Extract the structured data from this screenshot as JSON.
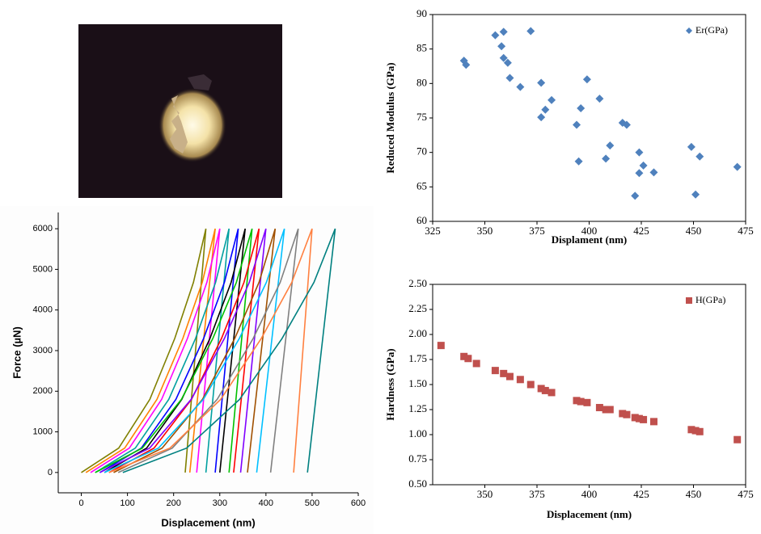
{
  "chart_data": [
    {
      "type": "line",
      "x_label": "Displacement (nm)",
      "y_label": "Force (µN)",
      "xlim": [
        -50,
        600
      ],
      "xticks": [
        0,
        100,
        200,
        300,
        400,
        500,
        600
      ],
      "ylim": [
        -500,
        6400
      ],
      "yticks": [
        0,
        1000,
        2000,
        3000,
        4000,
        5000,
        6000
      ],
      "series": [
        {
          "color": "#808000",
          "x": [
            0,
            81,
            148.5,
            202.5,
            243,
            270,
            225
          ],
          "values": [
            0,
            600,
            1800,
            3300,
            4680,
            6000,
            0
          ]
        },
        {
          "color": "#ff8000",
          "x": [
            10,
            94,
            164,
            220,
            262,
            290,
            235
          ],
          "values": [
            0,
            600,
            1800,
            3300,
            4680,
            6000,
            0
          ]
        },
        {
          "color": "#ff00ff",
          "x": [
            20,
            104,
            174,
            230,
            272,
            300,
            250
          ],
          "values": [
            0,
            600,
            1800,
            3300,
            4680,
            6000,
            0
          ]
        },
        {
          "color": "#00a0a0",
          "x": [
            30,
            117,
            189.5,
            247.5,
            291,
            320,
            270
          ],
          "values": [
            0,
            600,
            1800,
            3300,
            4680,
            6000,
            0
          ]
        },
        {
          "color": "#0000ff",
          "x": [
            40,
            130,
            205,
            265,
            310,
            340,
            290
          ],
          "values": [
            0,
            600,
            1800,
            3300,
            4680,
            6000,
            0
          ]
        },
        {
          "color": "#000000",
          "x": [
            50,
            141.5,
            217.75,
            278.75,
            324.5,
            355,
            300
          ],
          "values": [
            0,
            600,
            1800,
            3300,
            4680,
            6000,
            0
          ]
        },
        {
          "color": "#00c000",
          "x": [
            30,
            132,
            217,
            285,
            336,
            370,
            320
          ],
          "values": [
            0,
            600,
            1800,
            3300,
            4680,
            6000,
            0
          ]
        },
        {
          "color": "#ff0000",
          "x": [
            60,
            157.5,
            238.75,
            303.75,
            352.5,
            385,
            330
          ],
          "values": [
            0,
            600,
            1800,
            3300,
            4680,
            6000,
            0
          ]
        },
        {
          "color": "#8000ff",
          "x": [
            40,
            148,
            238,
            310,
            364,
            400,
            345
          ],
          "values": [
            0,
            600,
            1800,
            3300,
            4680,
            6000,
            0
          ]
        },
        {
          "color": "#a05000",
          "x": [
            70,
            175,
            262.5,
            332.5,
            385,
            420,
            360
          ],
          "values": [
            0,
            600,
            1800,
            3300,
            4680,
            6000,
            0
          ]
        },
        {
          "color": "#00c0ff",
          "x": [
            50,
            167,
            264.5,
            342.5,
            401,
            440,
            380
          ],
          "values": [
            0,
            600,
            1800,
            3300,
            4680,
            6000,
            0
          ]
        },
        {
          "color": "#808080",
          "x": [
            80,
            197,
            294.5,
            372.5,
            431,
            470,
            410
          ],
          "values": [
            0,
            600,
            1800,
            3300,
            4680,
            6000,
            0
          ]
        },
        {
          "color": "#ff8040",
          "x": [
            60,
            192,
            302,
            390,
            456,
            500,
            460
          ],
          "values": [
            0,
            600,
            1800,
            3300,
            4680,
            6000,
            0
          ]
        },
        {
          "color": "#008080",
          "x": [
            90,
            228,
            343,
            435,
            504,
            550,
            490
          ],
          "values": [
            0,
            600,
            1800,
            3300,
            4680,
            6000,
            0
          ]
        }
      ]
    },
    {
      "type": "scatter",
      "x_label": "Displament (nm)",
      "y_label": "Reduced Modulus (GPa)",
      "xlim": [
        325,
        475
      ],
      "xticks": [
        325,
        350,
        375,
        400,
        425,
        450,
        475
      ],
      "ylim": [
        60,
        90
      ],
      "yticks": [
        60,
        65,
        70,
        75,
        80,
        85,
        90
      ],
      "legend": "upper right",
      "series": [
        {
          "name": "Er(GPa)",
          "color": "#4f81bd",
          "marker": "diamond",
          "x": [
            340,
            341,
            355,
            359,
            358,
            359,
            361,
            362,
            367,
            372,
            377,
            377,
            379,
            382,
            394,
            396,
            395,
            399,
            405,
            408,
            410,
            416,
            418,
            422,
            424,
            424,
            426,
            431,
            449,
            451,
            453,
            471
          ],
          "values": [
            83.3,
            82.7,
            87,
            87.5,
            85.4,
            83.7,
            83,
            80.8,
            79.5,
            87.6,
            80.1,
            75.1,
            76.2,
            77.6,
            74,
            76.4,
            68.7,
            80.6,
            77.8,
            69.1,
            71,
            74.3,
            74,
            63.7,
            70,
            67,
            68.1,
            67.1,
            70.8,
            63.9,
            69.4,
            67.9
          ]
        }
      ]
    },
    {
      "type": "scatter",
      "x_label": "Displacement (nm)",
      "y_label": "Hardness (GPa)",
      "xlim": [
        325,
        475
      ],
      "xticks": [
        350,
        375,
        400,
        425,
        450,
        475
      ],
      "ylim": [
        0.5,
        2.5
      ],
      "yticks": [
        {
          "value": 0.5,
          "label": "0.50"
        },
        {
          "value": 0.75,
          "label": "0.75"
        },
        {
          "value": 1,
          "label": "1.00"
        },
        {
          "value": 1.25,
          "label": "1.25"
        },
        {
          "value": 1.5,
          "label": "1.50"
        },
        {
          "value": 1.75,
          "label": "1.75"
        },
        {
          "value": 2,
          "label": "2.00"
        },
        {
          "value": 2.25,
          "label": "2.25"
        },
        {
          "value": 2.5,
          "label": "2.50"
        }
      ],
      "legend": "upper right",
      "series": [
        {
          "name": "H(GPa)",
          "color": "#c0504d",
          "marker": "square",
          "x": [
            329,
            340,
            342,
            346,
            355,
            359,
            362,
            367,
            372,
            377,
            379,
            382,
            394,
            396,
            399,
            405,
            408,
            410,
            416,
            418,
            422,
            424,
            426,
            431,
            449,
            451,
            453,
            471
          ],
          "values": [
            1.89,
            1.78,
            1.76,
            1.71,
            1.64,
            1.61,
            1.58,
            1.55,
            1.5,
            1.46,
            1.44,
            1.42,
            1.34,
            1.33,
            1.32,
            1.27,
            1.25,
            1.25,
            1.21,
            1.2,
            1.17,
            1.16,
            1.15,
            1.13,
            1.05,
            1.04,
            1.03,
            0.95
          ]
        }
      ]
    }
  ]
}
